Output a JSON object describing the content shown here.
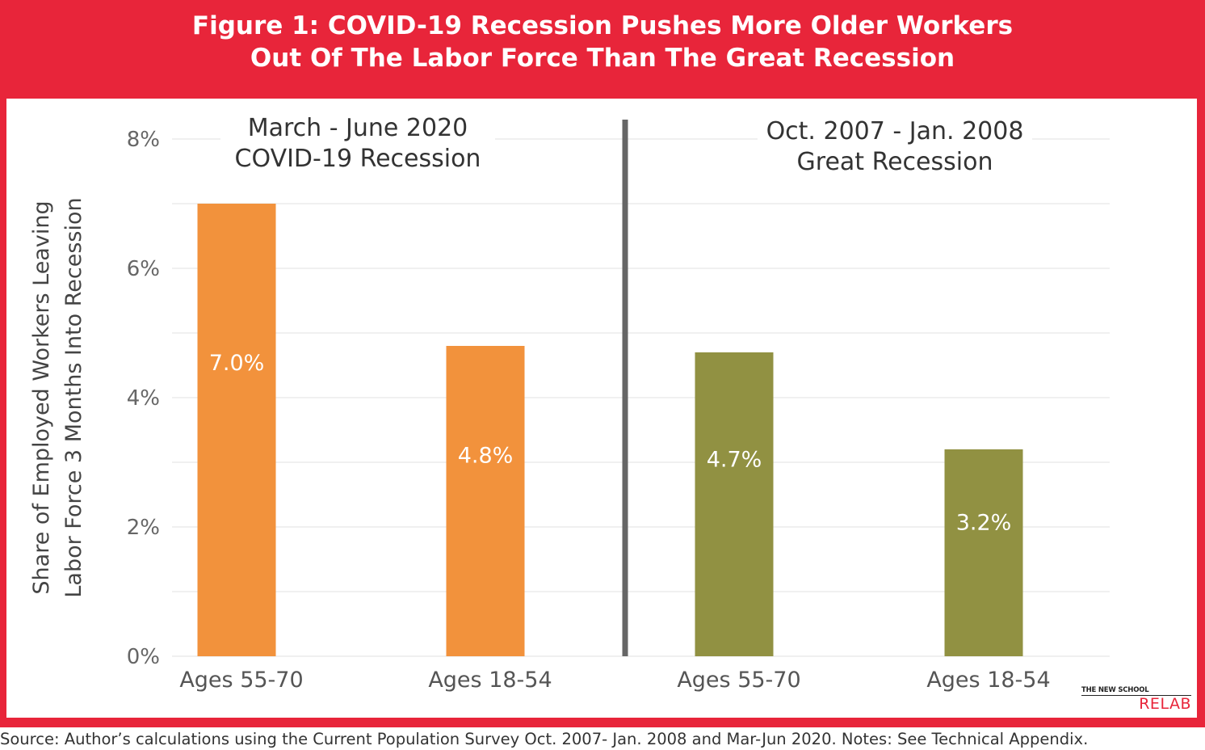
{
  "title_lines": [
    "Figure 1: COVID-19 Recession Pushes More Older Workers",
    "Out Of The Labor Force Than The Great Recession"
  ],
  "source_note": "Source: Author’s calculations using the Current Population Survey Oct. 2007- Jan. 2008 and Mar-Jun 2020. Notes: See Technical Appendix.",
  "logo": {
    "top": "THE NEW SCHOOL",
    "bottom": "RELAB"
  },
  "chart_data": {
    "type": "bar",
    "ylabel_lines": [
      "Share of Employed Workers Leaving",
      "Labor Force 3 Months Into Recession"
    ],
    "ylim": [
      0,
      8
    ],
    "yticks": [
      0,
      2,
      4,
      6,
      8
    ],
    "ytick_labels": [
      "0%",
      "2%",
      "4%",
      "6%",
      "8%"
    ],
    "minor_gridlines": [
      1,
      3,
      5,
      7
    ],
    "grid": true,
    "groups": [
      {
        "label_lines": [
          "March - June 2020",
          "COVID-19 Recession"
        ],
        "color": "#f2923c",
        "categories": [
          "Ages 55-70",
          "Ages 18-54"
        ],
        "values": [
          7.0,
          4.8
        ],
        "value_labels": [
          "7.0%",
          "4.8%"
        ]
      },
      {
        "label_lines": [
          "Oct. 2007 - Jan. 2008",
          "Great Recession"
        ],
        "color": "#919142",
        "categories": [
          "Ages 55-70",
          "Ages 18-54"
        ],
        "values": [
          4.7,
          3.2
        ],
        "value_labels": [
          "4.7%",
          "3.2%"
        ]
      }
    ]
  }
}
